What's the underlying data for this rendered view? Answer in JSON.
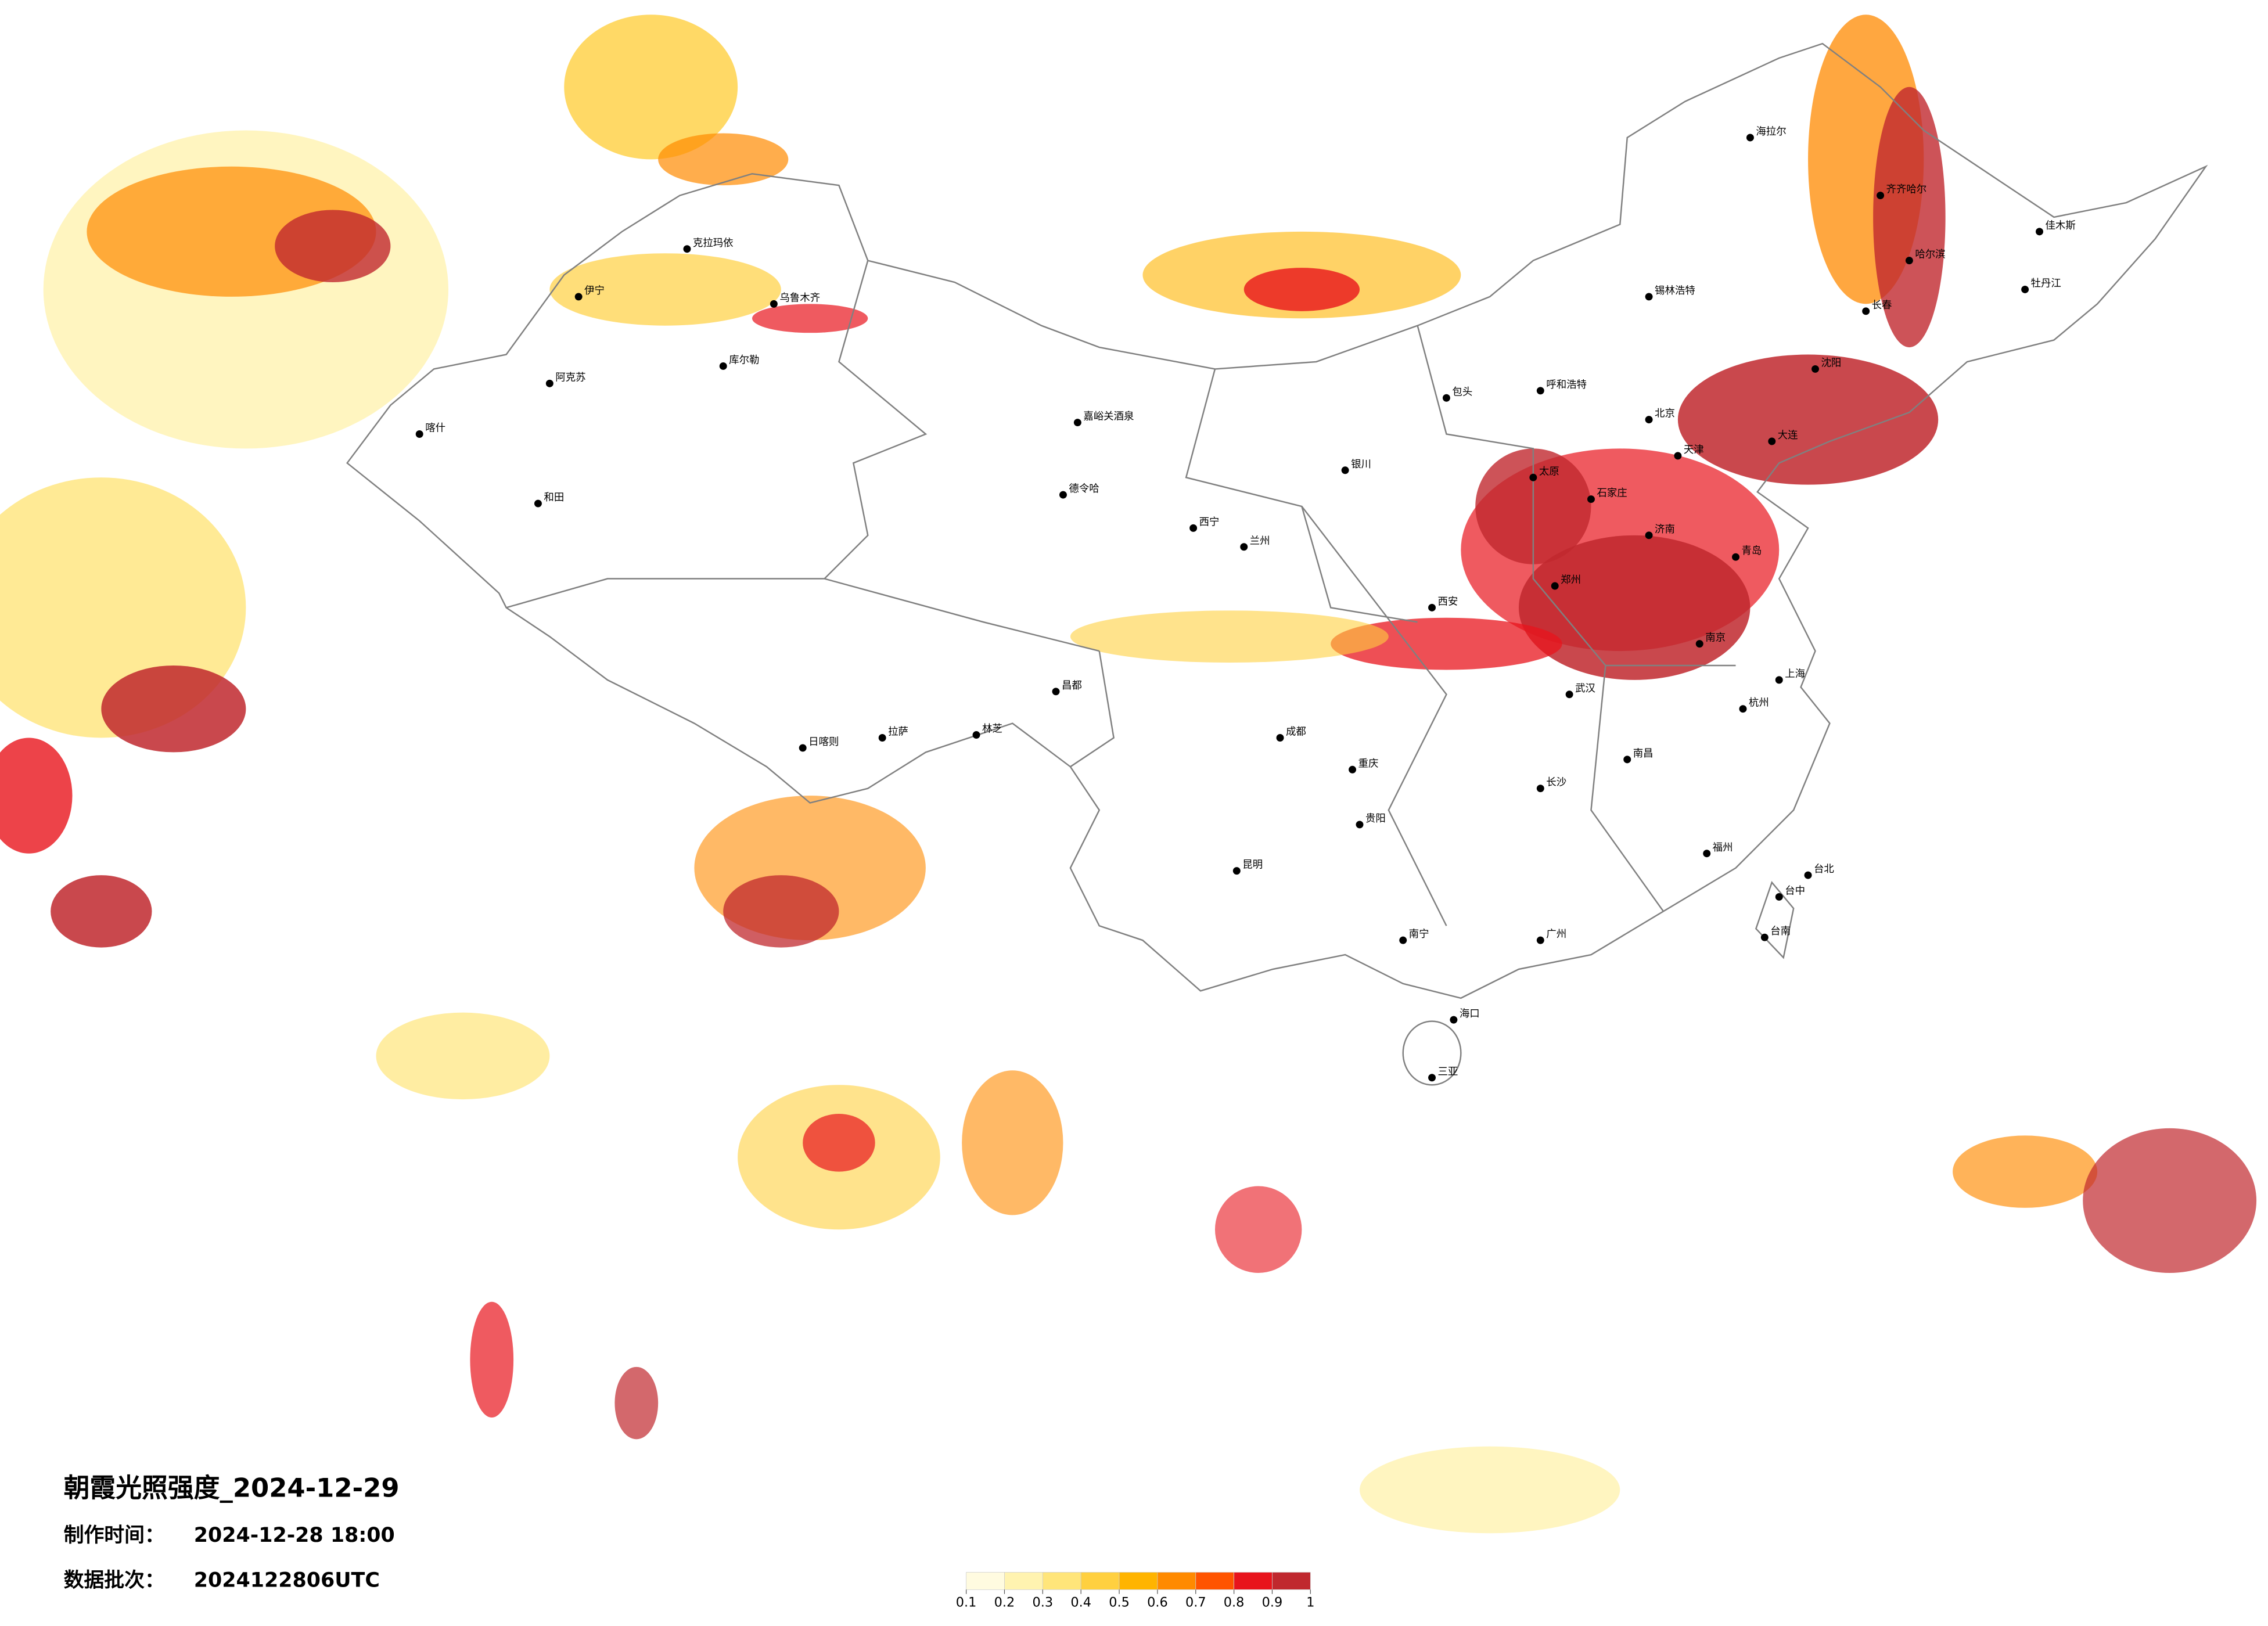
{
  "map": {
    "title": "朝霞光照强度_2024-12-29",
    "made_label": "制作时间：",
    "made_time": "2024-12-28 18:00",
    "batch_label": "数据批次：",
    "batch": "2024122806UTC",
    "legend": {
      "ticks": [
        0.1,
        0.2,
        0.3,
        0.4,
        0.5,
        0.6,
        0.7,
        0.8,
        0.9,
        1
      ],
      "colors": [
        "#fffbe0",
        "#fff3b0",
        "#ffe57a",
        "#ffd040",
        "#ffb400",
        "#ff8a00",
        "#ff5400",
        "#e8141c",
        "#c0282e"
      ]
    },
    "cities": [
      "海拉尔",
      "锡林浩特",
      "呼和浩特",
      "包头",
      "北京",
      "天津",
      "石家庄",
      "太原",
      "济南",
      "青岛",
      "郑州",
      "西安",
      "银川",
      "兰州",
      "西宁",
      "德令哈",
      "嘉峪关酒泉",
      "乌鲁木齐",
      "克拉玛依",
      "伊宁",
      "库尔勒",
      "阿克苏",
      "喀什",
      "和田",
      "拉萨",
      "日喀则",
      "林芝",
      "昌都",
      "成都",
      "重庆",
      "贵阳",
      "昆明",
      "南宁",
      "海口",
      "三亚",
      "广州",
      "福州",
      "台北",
      "台中",
      "台南",
      "上海",
      "南京",
      "杭州",
      "武汉",
      "长沙",
      "南昌",
      "沈阳",
      "大连",
      "长春",
      "哈尔滨",
      "齐齐哈尔",
      "牡丹江",
      "佳木斯"
    ]
  }
}
